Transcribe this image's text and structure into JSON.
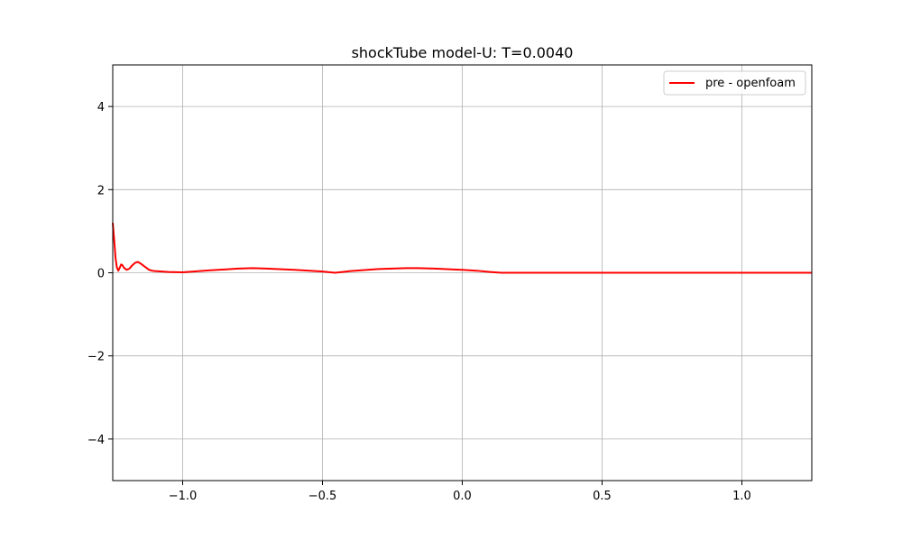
{
  "chart_data": {
    "type": "line",
    "title": "shockTube model-U: T=0.0040",
    "xlabel": "",
    "ylabel": "",
    "xlim": [
      -1.25,
      1.25
    ],
    "ylim": [
      -5,
      5
    ],
    "grid": true,
    "legend_position": "top-right",
    "xticks": [
      -1.0,
      -0.5,
      0.0,
      0.5,
      1.0
    ],
    "xtick_labels": [
      "−1.0",
      "−0.5",
      "0.0",
      "0.5",
      "1.0"
    ],
    "yticks": [
      -4,
      -2,
      0,
      2,
      4
    ],
    "ytick_labels": [
      "−4",
      "−2",
      "0",
      "2",
      "4"
    ],
    "series": [
      {
        "name": "pre - openfoam",
        "color": "#ff0000",
        "x": [
          -1.25,
          -1.245,
          -1.24,
          -1.235,
          -1.23,
          -1.225,
          -1.22,
          -1.215,
          -1.21,
          -1.2,
          -1.19,
          -1.18,
          -1.17,
          -1.16,
          -1.15,
          -1.14,
          -1.13,
          -1.12,
          -1.11,
          -1.1,
          -1.05,
          -1.0,
          -0.9,
          -0.8,
          -0.75,
          -0.7,
          -0.6,
          -0.5,
          -0.455,
          -0.4,
          -0.3,
          -0.2,
          -0.16,
          -0.1,
          0.0,
          0.05,
          0.1,
          0.14,
          0.2,
          0.5,
          1.0,
          1.25
        ],
        "y": [
          1.2,
          0.8,
          0.35,
          0.12,
          0.05,
          0.12,
          0.2,
          0.18,
          0.12,
          0.07,
          0.1,
          0.18,
          0.24,
          0.26,
          0.22,
          0.17,
          0.12,
          0.07,
          0.05,
          0.04,
          0.02,
          0.01,
          0.06,
          0.1,
          0.11,
          0.1,
          0.07,
          0.03,
          0.0,
          0.04,
          0.09,
          0.11,
          0.11,
          0.1,
          0.07,
          0.05,
          0.02,
          0.0,
          0.0,
          0.0,
          0.0,
          0.0
        ]
      }
    ]
  }
}
